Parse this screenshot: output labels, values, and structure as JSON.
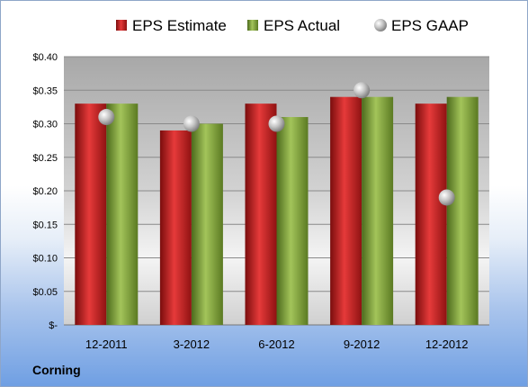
{
  "chart_data": {
    "type": "bar",
    "categories": [
      "12-2011",
      "3-2012",
      "6-2012",
      "9-2012",
      "12-2012"
    ],
    "series": [
      {
        "name": "EPS Estimate",
        "kind": "bar",
        "color": "#cc1f1f",
        "values": [
          0.33,
          0.29,
          0.33,
          0.34,
          0.33
        ]
      },
      {
        "name": "EPS Actual",
        "kind": "bar",
        "color": "#86a83a",
        "values": [
          0.33,
          0.3,
          0.31,
          0.34,
          0.34
        ]
      },
      {
        "name": "EPS GAAP",
        "kind": "marker",
        "color": "#b8b8b8",
        "values": [
          0.31,
          0.3,
          0.3,
          0.35,
          0.19
        ]
      }
    ],
    "ylim": [
      0,
      0.4
    ],
    "yticks": [
      {
        "value": 0.4,
        "label": "$0.40"
      },
      {
        "value": 0.35,
        "label": "$0.35"
      },
      {
        "value": 0.3,
        "label": "$0.30"
      },
      {
        "value": 0.25,
        "label": "$0.25"
      },
      {
        "value": 0.2,
        "label": "$0.20"
      },
      {
        "value": 0.15,
        "label": "$0.15"
      },
      {
        "value": 0.1,
        "label": "$0.10"
      },
      {
        "value": 0.05,
        "label": "$0.05"
      },
      {
        "value": 0,
        "label": "$-"
      }
    ],
    "grid": true,
    "legend_position": "top"
  },
  "company": "Corning"
}
